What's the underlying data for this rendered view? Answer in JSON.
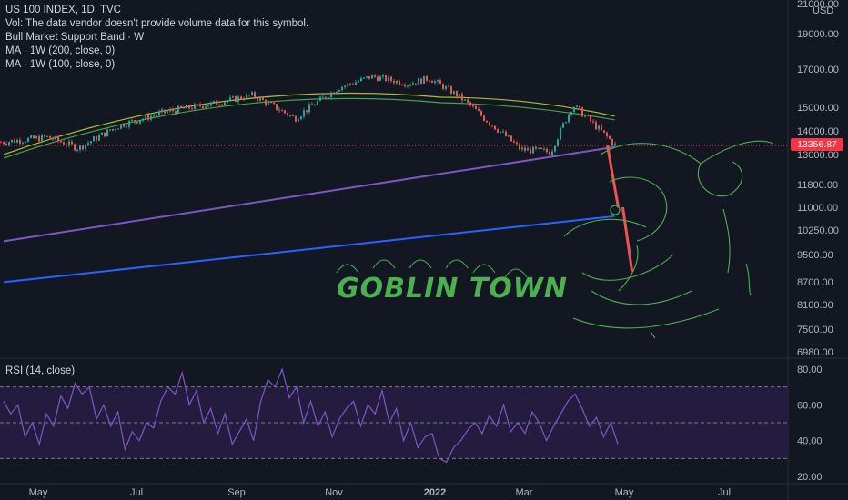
{
  "legend": {
    "title": "US 100 INDEX, 1D, TVC",
    "vol": "Vol: The data vendor doesn't provide volume data for this symbol.",
    "band": "Bull Market Support Band · W",
    "ma200": "MA · 1W (200, close, 0)",
    "ma100": "MA · 1W (100, close, 0)"
  },
  "rsi_label": "RSI (14, close)",
  "price_badge": "13356.87",
  "annotation": "GOBLIN TOWN",
  "currency": "USD",
  "colors": {
    "background": "#131722",
    "up": "#26a69a",
    "down": "#ef5350",
    "ma200": "#2962ff",
    "ma100": "#7e57c2",
    "band_fill": "#b3261e",
    "band_line_a": "#4caf50",
    "band_line_b": "#c0ca33",
    "rsi_line": "#7e57c2",
    "rsi_fill": "#2a1f4a",
    "goblin": "#4caf50"
  },
  "chart_data": [
    {
      "type": "candlestick",
      "title": "US 100 INDEX, 1D, TVC",
      "xlabel": "",
      "ylabel": "USD",
      "y_ticks": [
        "21000.00",
        "19000.00",
        "17000.00",
        "15000.00",
        "14000.00",
        "13000.00",
        "11800.00",
        "11000.00",
        "10250.00",
        "9500.00",
        "8700.00",
        "8100.00",
        "7500.00",
        "6980.00"
      ],
      "x_ticks": [
        "May",
        "Jul",
        "Sep",
        "Nov",
        "2022",
        "Mar",
        "May",
        "Jul"
      ],
      "scale": "log",
      "last_price": 13356.87,
      "close_series": [
        {
          "date": "2021-04-01",
          "close": 13500
        },
        {
          "date": "2021-05-01",
          "close": 13700
        },
        {
          "date": "2021-05-20",
          "close": 13250
        },
        {
          "date": "2021-06-15",
          "close": 14200
        },
        {
          "date": "2021-07-15",
          "close": 14800
        },
        {
          "date": "2021-08-15",
          "close": 15200
        },
        {
          "date": "2021-09-07",
          "close": 15600
        },
        {
          "date": "2021-10-04",
          "close": 14500
        },
        {
          "date": "2021-11-01",
          "close": 16000
        },
        {
          "date": "2021-11-22",
          "close": 16600
        },
        {
          "date": "2021-12-15",
          "close": 16200
        },
        {
          "date": "2021-12-28",
          "close": 16500
        },
        {
          "date": "2022-01-15",
          "close": 15600
        },
        {
          "date": "2022-02-01",
          "close": 14500
        },
        {
          "date": "2022-02-24",
          "close": 13200
        },
        {
          "date": "2022-03-15",
          "close": 13100
        },
        {
          "date": "2022-03-29",
          "close": 15100
        },
        {
          "date": "2022-04-15",
          "close": 14000
        },
        {
          "date": "2022-04-25",
          "close": 13356.87
        }
      ],
      "projection": [
        {
          "date": "2022-04-25",
          "close": 13356.87
        },
        {
          "date": "2022-05-03",
          "close": 11000
        },
        {
          "date": "2022-05-10",
          "close": 9000
        }
      ],
      "series": [
        {
          "name": "MA · 1W (200, close, 0)",
          "start": 8700,
          "end": 10700
        },
        {
          "name": "MA · 1W (100, close, 0)",
          "start": 9900,
          "end": 13300
        },
        {
          "name": "Bull Market Support Band · W",
          "start": 13000,
          "peak": 15500,
          "end": 14600
        }
      ]
    },
    {
      "type": "line",
      "title": "RSI (14, close)",
      "y_ticks": [
        "80.00",
        "60.00",
        "40.00",
        "20.00"
      ],
      "bands": [
        70,
        50,
        30
      ],
      "values": [
        62,
        55,
        60,
        42,
        50,
        38,
        55,
        48,
        65,
        58,
        72,
        66,
        70,
        52,
        60,
        48,
        56,
        35,
        45,
        40,
        50,
        47,
        62,
        70,
        66,
        78,
        60,
        68,
        50,
        58,
        44,
        55,
        38,
        45,
        52,
        40,
        62,
        74,
        70,
        80,
        64,
        70,
        50,
        62,
        48,
        56,
        42,
        52,
        58,
        62,
        48,
        60,
        55,
        68,
        50,
        58,
        40,
        50,
        36,
        42,
        44,
        30,
        28,
        36,
        40,
        46,
        50,
        44,
        54,
        48,
        60,
        45,
        50,
        44,
        56,
        50,
        40,
        48,
        55,
        62,
        66,
        58,
        48,
        53,
        42,
        50,
        38
      ]
    }
  ]
}
